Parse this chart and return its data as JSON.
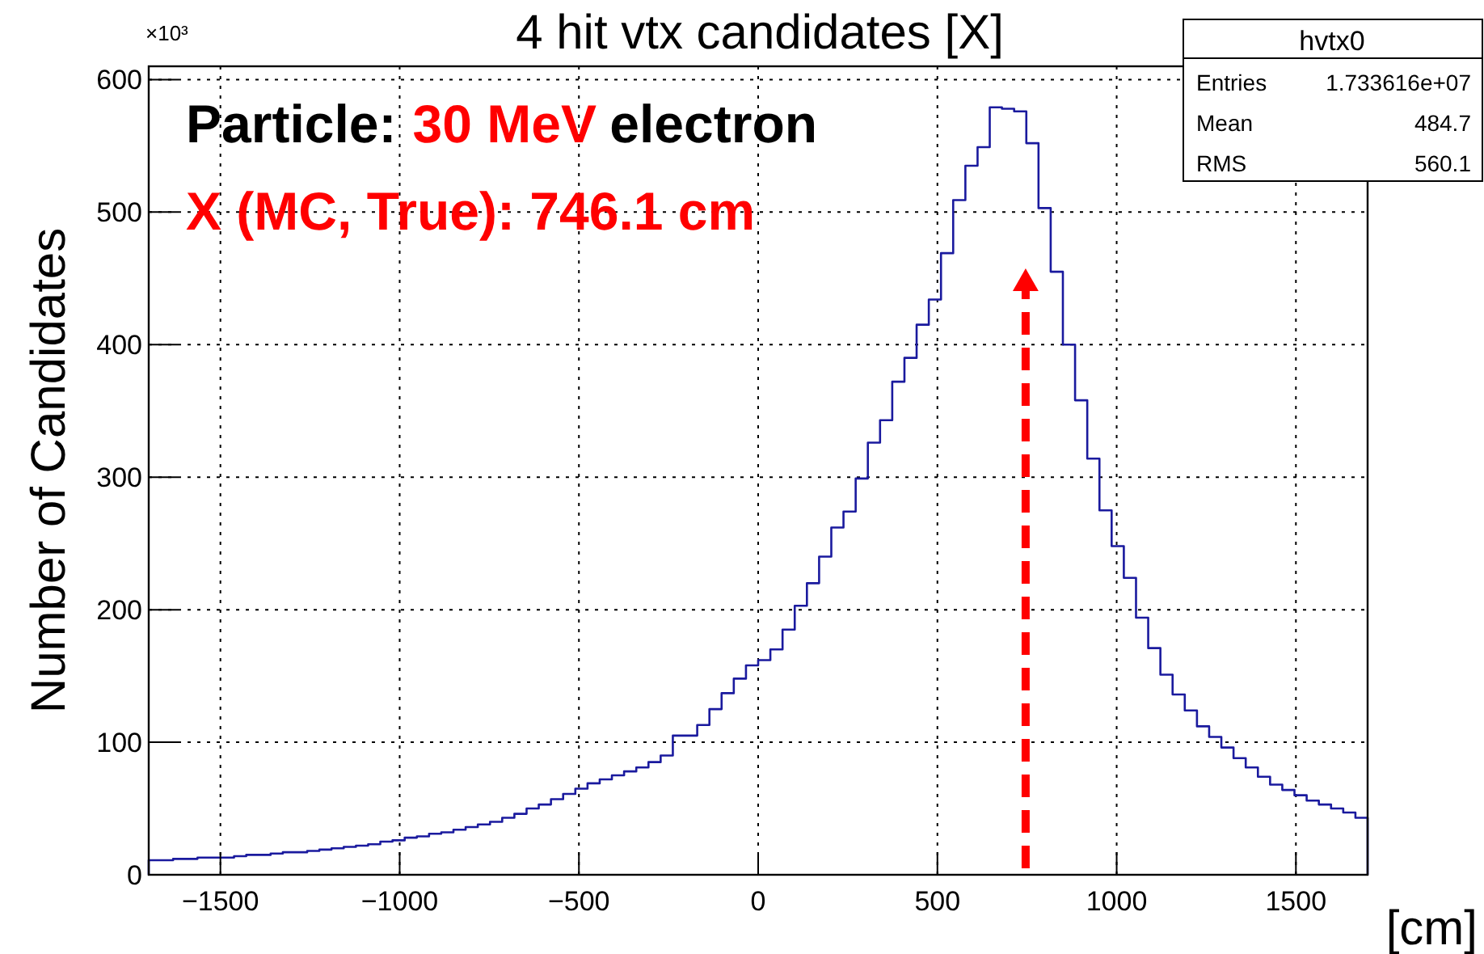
{
  "chart_data": {
    "type": "histogram",
    "title": "4 hit vtx candidates [X]",
    "xlabel": "[cm]",
    "ylabel": "Number of Candidates",
    "annotations": [
      "×10³",
      "Particle:",
      "30 MeV",
      "electron",
      "X (MC, True): 746.1 cm",
      "hvtx0",
      "Entries",
      "1.733616e+07",
      "Mean",
      "484.7",
      "RMS",
      "560.1"
    ],
    "bins": [
      -1700,
      -1666,
      -1632,
      -1598,
      -1564,
      -1530,
      -1496,
      -1462,
      -1428,
      -1394,
      -1360,
      -1326,
      -1292,
      -1258,
      -1224,
      -1190,
      -1156,
      -1122,
      -1088,
      -1054,
      -1020,
      -986,
      -952,
      -918,
      -884,
      -850,
      -816,
      -782,
      -748,
      -714,
      -680,
      -646,
      -612,
      -578,
      -544,
      -510,
      -476,
      -442,
      -408,
      -374,
      -340,
      -306,
      -272,
      -238,
      -204,
      -170,
      -136,
      -102,
      -68,
      -34,
      0,
      34,
      68,
      102,
      136,
      170,
      204,
      238,
      272,
      306,
      340,
      374,
      408,
      442,
      476,
      510,
      544,
      578,
      612,
      646,
      680,
      714,
      748,
      782,
      816,
      850,
      884,
      918,
      952,
      986,
      1020,
      1054,
      1088,
      1122,
      1156,
      1190,
      1224,
      1258,
      1292,
      1326,
      1360,
      1394,
      1428,
      1462,
      1496,
      1530,
      1564,
      1598,
      1632,
      1666,
      1700
    ],
    "values": [
      11,
      11,
      12,
      12,
      13,
      13,
      13,
      14,
      15,
      15,
      16,
      17,
      17,
      18,
      19,
      20,
      21,
      22,
      23,
      25,
      26,
      28,
      29,
      31,
      32,
      34,
      36,
      38,
      40,
      43,
      46,
      50,
      53,
      57,
      61,
      65,
      69,
      72,
      75,
      78,
      81,
      85,
      90,
      105,
      105,
      113,
      125,
      137,
      148,
      158,
      162,
      170,
      185,
      203,
      220,
      240,
      262,
      274,
      299,
      326,
      343,
      372,
      390,
      415,
      434,
      469,
      509,
      535,
      549,
      579,
      578,
      576,
      552,
      503,
      455,
      400,
      358,
      314,
      275,
      248,
      224,
      194,
      171,
      151,
      136,
      124,
      112,
      104,
      96,
      88,
      81,
      74,
      68,
      64,
      60,
      56,
      53,
      50,
      47,
      43
    ],
    "color": "#1a1a9e",
    "xlim": [
      -1700,
      1700
    ],
    "xticks": [
      -1500,
      -1000,
      -500,
      0,
      500,
      1000,
      1500
    ],
    "ylim": [
      0,
      610
    ],
    "yticks": [
      0,
      100,
      200,
      300,
      400,
      500,
      600
    ],
    "grid": true,
    "ref_lines": [
      {
        "axis": "x",
        "value": 746.1,
        "color": "#ff0000",
        "line_style": "dashed"
      }
    ]
  }
}
